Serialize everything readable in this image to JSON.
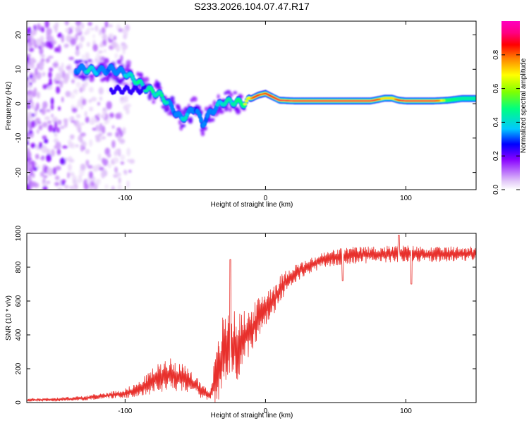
{
  "title": "S233.2026.104.07.47.R17",
  "chart_data": [
    {
      "type": "heatmap",
      "title": "S233.2026.104.07.47.R17",
      "xlabel": "Height of straight line (km)",
      "ylabel": "Frequency (Hz)",
      "xlim": [
        -170,
        150
      ],
      "ylim": [
        -25,
        24
      ],
      "xticks": [
        -100,
        0,
        100
      ],
      "xtick_labels": [
        "-100",
        "0",
        "100"
      ],
      "yticks": [
        -20,
        -10,
        0,
        10,
        20
      ],
      "ytick_labels": [
        "-20",
        "-10",
        "0",
        "10",
        "20"
      ],
      "colorbar": {
        "label": "Normalized spectral amplitude",
        "range": [
          0,
          1
        ],
        "ticks": [
          0.0,
          0.2,
          0.4,
          0.6,
          0.8
        ],
        "tick_labels": [
          "0.0",
          "0.2",
          "0.4",
          "0.6",
          "0.8"
        ],
        "colors": [
          "#ffffff",
          "#e0c8f8",
          "#8800ff",
          "#0000ff",
          "#00c8ff",
          "#00ff80",
          "#80ff00",
          "#ffff00",
          "#ff8000",
          "#ff0000",
          "#ff0080",
          "#ff00c0"
        ]
      },
      "ridge": {
        "height_km": [
          -135,
          -128,
          -120,
          -110,
          -100,
          -95,
          -90,
          -85,
          -80,
          -75,
          -70,
          -65,
          -60,
          -55,
          -50,
          -45,
          -40,
          -35,
          -30,
          -25,
          -20,
          -15,
          -10,
          -5,
          0,
          10,
          20,
          50,
          75,
          80,
          85,
          90,
          95,
          100,
          110,
          120,
          130,
          140,
          150
        ],
        "frequency_hz": [
          10,
          10,
          9.5,
          10,
          9,
          7.5,
          6,
          4.5,
          3.5,
          2.5,
          0.5,
          -2,
          -4.5,
          -3,
          -1,
          -6,
          -3,
          -1,
          0.5,
          0.5,
          0.5,
          0,
          1.5,
          2.5,
          3,
          1,
          0.8,
          0.8,
          0.8,
          1.2,
          1.6,
          1.6,
          1.0,
          0.8,
          0.8,
          0.8,
          1.0,
          1.5,
          1.5
        ],
        "amplitude": [
          0.35,
          0.4,
          0.4,
          0.35,
          0.4,
          0.4,
          0.45,
          0.45,
          0.45,
          0.45,
          0.4,
          0.35,
          0.4,
          0.4,
          0.3,
          0.35,
          0.35,
          0.4,
          0.4,
          0.4,
          0.5,
          0.6,
          0.8,
          0.85,
          0.85,
          0.9,
          0.95,
          0.95,
          0.95,
          0.85,
          0.7,
          0.75,
          0.85,
          0.95,
          0.95,
          0.95,
          0.5,
          0.45,
          0.45
        ]
      }
    },
    {
      "type": "line",
      "xlabel": "Height of straight line (km)",
      "ylabel": "SNR (10 * v/v)",
      "xlim": [
        -170,
        150
      ],
      "ylim": [
        0,
        1000
      ],
      "xticks": [
        -100,
        0,
        100
      ],
      "xtick_labels": [
        "-100",
        "0",
        "100"
      ],
      "yticks": [
        0,
        200,
        400,
        600,
        800,
        1000
      ],
      "ytick_labels": [
        "0",
        "200",
        "400",
        "600",
        "800",
        "1000"
      ],
      "series": [
        {
          "name": "SNR",
          "color": "#e8302c",
          "x": [
            -170,
            -150,
            -130,
            -115,
            -100,
            -90,
            -80,
            -70,
            -60,
            -55,
            -50,
            -45,
            -40,
            -35,
            -30,
            -25,
            -20,
            -15,
            -10,
            -5,
            0,
            5,
            10,
            15,
            20,
            30,
            40,
            50,
            60,
            80,
            100,
            120,
            140,
            150
          ],
          "envelope_mean": [
            15,
            18,
            25,
            40,
            55,
            80,
            130,
            170,
            150,
            120,
            100,
            70,
            40,
            150,
            280,
            340,
            330,
            380,
            430,
            500,
            560,
            600,
            660,
            720,
            760,
            800,
            840,
            860,
            870,
            875,
            880,
            875,
            880,
            880
          ],
          "envelope_amp": [
            8,
            10,
            12,
            15,
            25,
            40,
            70,
            90,
            80,
            70,
            60,
            40,
            25,
            150,
            230,
            200,
            180,
            150,
            120,
            110,
            100,
            90,
            80,
            60,
            50,
            40,
            40,
            45,
            45,
            45,
            45,
            40,
            40,
            40
          ]
        }
      ],
      "annotations": {
        "peaks": [
          {
            "x": -25,
            "y": 845
          },
          {
            "x": 95,
            "y": 990
          },
          {
            "x": 104,
            "y": 700
          },
          {
            "x": 55,
            "y": 720
          }
        ]
      }
    }
  ]
}
